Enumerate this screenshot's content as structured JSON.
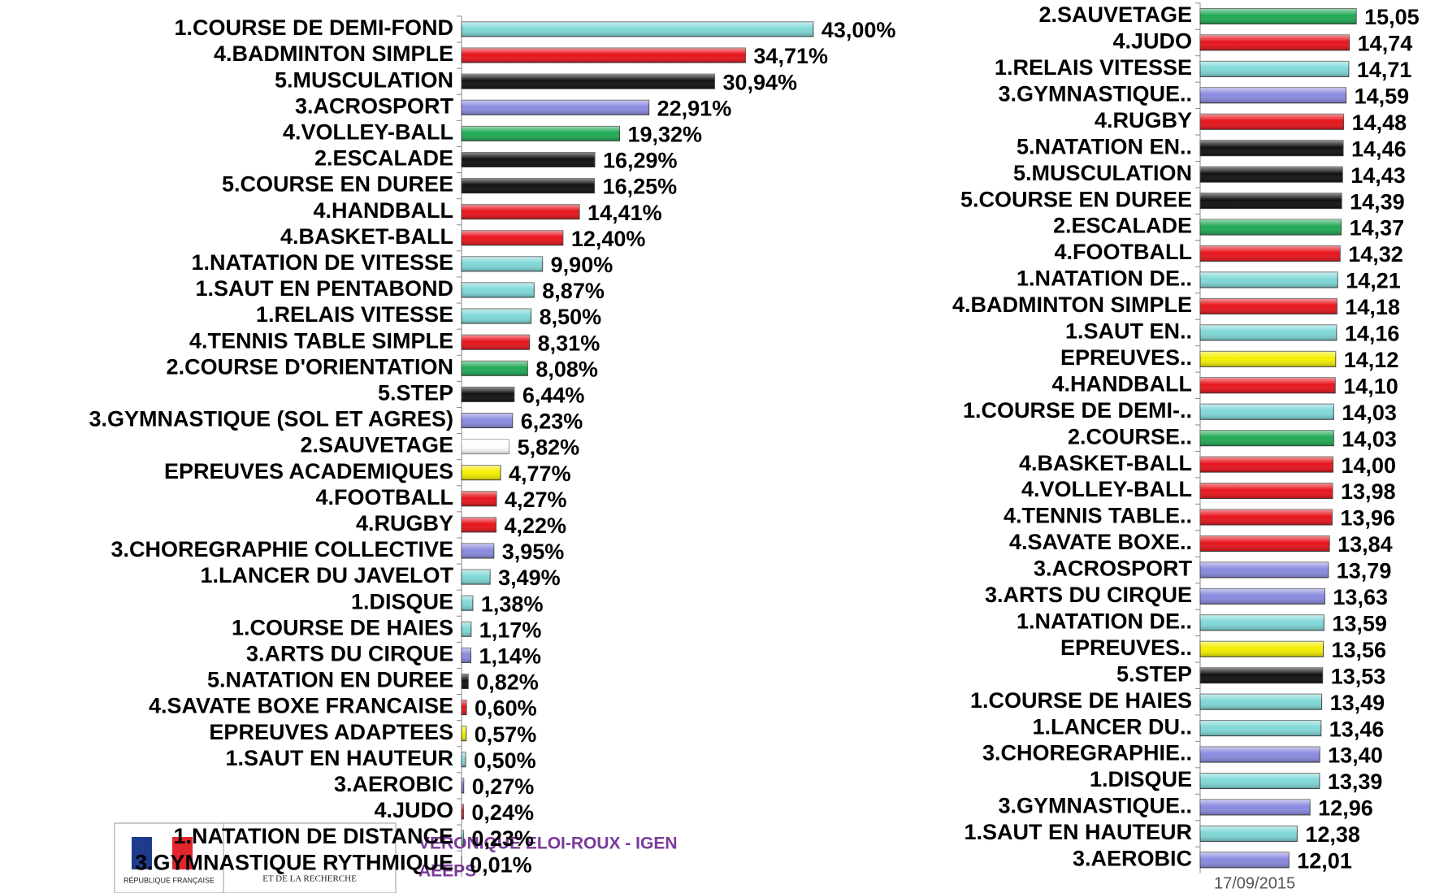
{
  "chart_data": [
    {
      "type": "bar",
      "orientation": "horizontal",
      "categories": [
        "1.COURSE DE DEMI-FOND",
        "4.BADMINTON SIMPLE",
        "5.MUSCULATION",
        "3.ACROSPORT",
        "4.VOLLEY-BALL",
        "2.ESCALADE",
        "5.COURSE EN DUREE",
        "4.HANDBALL",
        "4.BASKET-BALL",
        "1.NATATION DE VITESSE",
        "1.SAUT EN PENTABOND",
        "1.RELAIS VITESSE",
        "4.TENNIS TABLE SIMPLE",
        "2.COURSE D'ORIENTATION",
        "5.STEP",
        "3.GYMNASTIQUE (SOL ET AGRES)",
        "2.SAUVETAGE",
        "EPREUVES ACADEMIQUES",
        "4.FOOTBALL",
        "4.RUGBY",
        "3.CHOREGRAPHIE COLLECTIVE",
        "1.LANCER DU JAVELOT",
        "1.DISQUE",
        "1.COURSE DE HAIES",
        "3.ARTS DU CIRQUE",
        "5.NATATION EN DUREE",
        "4.SAVATE BOXE FRANCAISE",
        "EPREUVES ADAPTEES",
        "1.SAUT EN HAUTEUR",
        "3.AEROBIC",
        "4.JUDO",
        "1.NATATION DE DISTANCE",
        "3.GYMNASTIQUE RYTHMIQUE"
      ],
      "values": [
        43.0,
        34.71,
        30.94,
        22.91,
        19.32,
        16.29,
        16.25,
        14.41,
        12.4,
        9.9,
        8.87,
        8.5,
        8.31,
        8.08,
        6.44,
        6.23,
        5.82,
        4.77,
        4.27,
        4.22,
        3.95,
        3.49,
        1.38,
        1.17,
        1.14,
        0.82,
        0.6,
        0.57,
        0.5,
        0.27,
        0.24,
        0.23,
        0.01
      ],
      "value_labels": [
        "43,00%",
        "34,71%",
        "30,94%",
        "22,91%",
        "19,32%",
        "16,29%",
        "16,25%",
        "14,41%",
        "12,40%",
        "9,90%",
        "8,87%",
        "8,50%",
        "8,31%",
        "8,08%",
        "6,44%",
        "6,23%",
        "5,82%",
        "4,77%",
        "4,27%",
        "4,22%",
        "3,95%",
        "3,49%",
        "1,38%",
        "1,17%",
        "1,14%",
        "0,82%",
        "0,60%",
        "0,57%",
        "0,50%",
        "0,27%",
        "0,24%",
        "0,23%",
        "0,01%"
      ],
      "colors": [
        "#80d8d8",
        "#e8141c",
        "#111111",
        "#8a8ae0",
        "#20aa55",
        "#111111",
        "#111111",
        "#e8141c",
        "#e8141c",
        "#80d8d8",
        "#80d8d8",
        "#80d8d8",
        "#e8141c",
        "#20aa55",
        "#111111",
        "#8a8ae0",
        "#ffffff",
        "#f4ee00",
        "#e8141c",
        "#e8141c",
        "#8a8ae0",
        "#80d8d8",
        "#80d8d8",
        "#80d8d8",
        "#8a8ae0",
        "#111111",
        "#e8141c",
        "#f4ee00",
        "#80d8d8",
        "#8a8ae0",
        "#e8141c",
        "#80d8d8",
        "#8a8ae0"
      ],
      "xlim": [
        0,
        45
      ]
    },
    {
      "type": "bar",
      "orientation": "horizontal",
      "categories": [
        "2.SAUVETAGE",
        "4.JUDO",
        "1.RELAIS VITESSE",
        "3.GYMNASTIQUE..",
        "4.RUGBY",
        "5.NATATION EN..",
        "5.MUSCULATION",
        "5.COURSE EN DUREE",
        "2.ESCALADE",
        "4.FOOTBALL",
        "1.NATATION DE..",
        "4.BADMINTON SIMPLE",
        "1.SAUT EN..",
        "EPREUVES..",
        "4.HANDBALL",
        "1.COURSE DE DEMI-..",
        "2.COURSE..",
        "4.BASKET-BALL",
        "4.VOLLEY-BALL",
        "4.TENNIS TABLE..",
        "4.SAVATE BOXE..",
        "3.ACROSPORT",
        "3.ARTS DU CIRQUE",
        "1.NATATION DE..",
        "EPREUVES..",
        "5.STEP",
        "1.COURSE DE HAIES",
        "1.LANCER DU..",
        "3.CHOREGRAPHIE..",
        "1.DISQUE",
        "3.GYMNASTIQUE..",
        "1.SAUT EN HAUTEUR",
        "3.AEROBIC"
      ],
      "values": [
        15.05,
        14.74,
        14.71,
        14.59,
        14.48,
        14.46,
        14.43,
        14.39,
        14.37,
        14.32,
        14.21,
        14.18,
        14.16,
        14.12,
        14.1,
        14.03,
        14.03,
        14.0,
        13.98,
        13.96,
        13.84,
        13.79,
        13.63,
        13.59,
        13.56,
        13.53,
        13.49,
        13.46,
        13.4,
        13.39,
        12.96,
        12.38,
        12.01
      ],
      "value_labels": [
        "15,05",
        "14,74",
        "14,71",
        "14,59",
        "14,48",
        "14,46",
        "14,43",
        "14,39",
        "14,37",
        "14,32",
        "14,21",
        "14,18",
        "14,16",
        "14,12",
        "14,10",
        "14,03",
        "14,03",
        "14,00",
        "13,98",
        "13,96",
        "13,84",
        "13,79",
        "13,63",
        "13,59",
        "13,56",
        "13,53",
        "13,49",
        "13,46",
        "13,40",
        "13,39",
        "12,96",
        "12,38",
        "12,01"
      ],
      "colors": [
        "#20aa55",
        "#e8141c",
        "#80d8d8",
        "#8a8ae0",
        "#e8141c",
        "#111111",
        "#111111",
        "#111111",
        "#20aa55",
        "#e8141c",
        "#80d8d8",
        "#e8141c",
        "#80d8d8",
        "#f4ee00",
        "#e8141c",
        "#80d8d8",
        "#20aa55",
        "#e8141c",
        "#e8141c",
        "#e8141c",
        "#e8141c",
        "#8a8ae0",
        "#8a8ae0",
        "#80d8d8",
        "#f4ee00",
        "#111111",
        "#80d8d8",
        "#80d8d8",
        "#8a8ae0",
        "#80d8d8",
        "#8a8ae0",
        "#80d8d8",
        "#8a8ae0"
      ],
      "xlim": [
        8,
        16
      ]
    }
  ],
  "footer": {
    "author": "VERONIQUE ELOI-ROUX  -  IGEN",
    "org": "AEEPS",
    "date": "17/09/2015",
    "logo_text": "RÉPUBLIQUE FRANÇAISE",
    "ministry": "ET DE LA RECHERCHE"
  }
}
